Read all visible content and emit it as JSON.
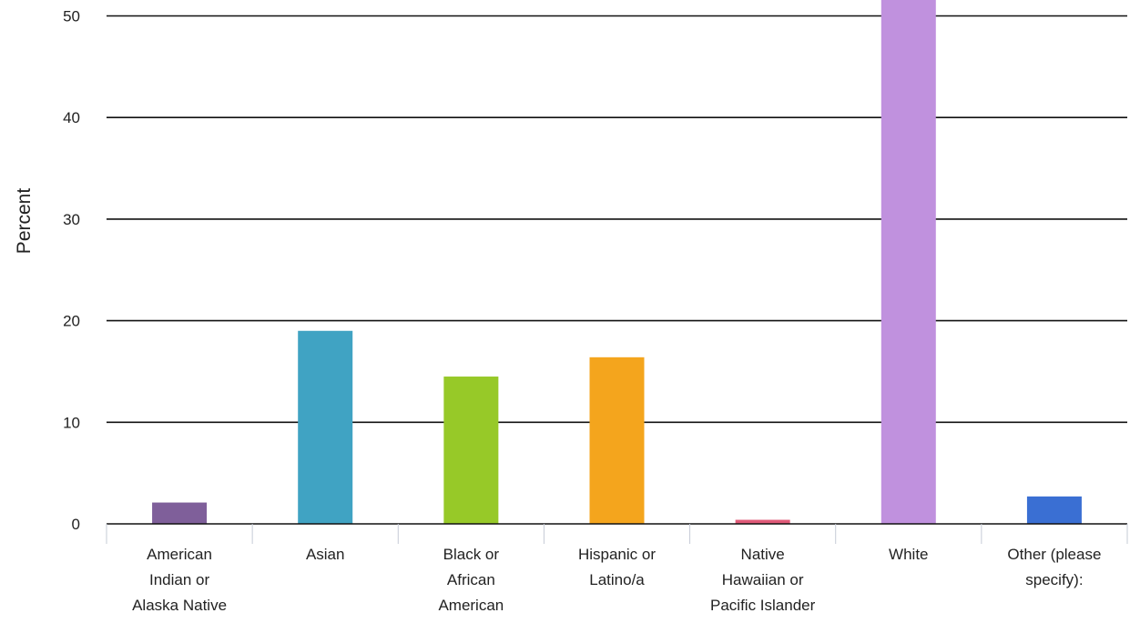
{
  "chart_data": {
    "type": "bar",
    "ylabel": "Percent",
    "ylim": [
      0,
      52
    ],
    "yticks": [
      0,
      10,
      20,
      30,
      40,
      50
    ],
    "grid": true,
    "categories": [
      [
        "American",
        "Indian or",
        "Alaska Native"
      ],
      [
        "Asian"
      ],
      [
        "Black or",
        "African",
        "American"
      ],
      [
        "Hispanic or",
        "Latino/a"
      ],
      [
        "Native",
        "Hawaiian or",
        "Pacific Islander"
      ],
      [
        "White"
      ],
      [
        "Other (please",
        "specify):"
      ]
    ],
    "values": [
      2.1,
      19,
      14.5,
      16.4,
      0.4,
      52,
      2.7
    ],
    "colors": [
      "#7f5f9a",
      "#40a3c3",
      "#97c928",
      "#f4a51d",
      "#e05a78",
      "#c091de",
      "#3a6fd3"
    ]
  }
}
